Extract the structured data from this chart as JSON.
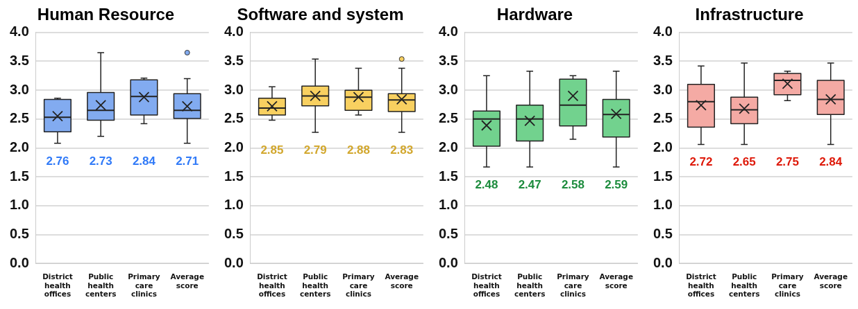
{
  "chart_data": [
    {
      "type": "box",
      "title": "Human Resource",
      "categories": [
        "District health offices",
        "Public health centers",
        "Primary care clinics",
        "Average score"
      ],
      "color": "#82abf0",
      "ylim": [
        0,
        4
      ],
      "yticks": [
        {
          "value": 0,
          "label": "0.0"
        },
        {
          "value": 0.5,
          "label": "0.5"
        },
        {
          "value": 1,
          "label": "1.0"
        },
        {
          "value": 1.5,
          "label": "1.5"
        },
        {
          "value": 2,
          "label": "2.0"
        },
        {
          "value": 2.5,
          "label": "2.5"
        },
        {
          "value": 3,
          "label": "3.0"
        },
        {
          "value": 3.5,
          "label": "3.5"
        },
        {
          "value": 4,
          "label": "4.0"
        }
      ],
      "grid": "y",
      "legend": false,
      "boxes": [
        {
          "low": 2.08,
          "q1": 2.28,
          "median": 2.53,
          "q3": 2.84,
          "high": 2.86,
          "mean": 2.55
        },
        {
          "low": 2.2,
          "q1": 2.48,
          "median": 2.65,
          "q3": 2.96,
          "high": 3.65,
          "mean": 2.74
        },
        {
          "low": 2.42,
          "q1": 2.57,
          "median": 2.89,
          "q3": 3.18,
          "high": 3.21,
          "mean": 2.88
        },
        {
          "low": 2.08,
          "q1": 2.51,
          "median": 2.65,
          "q3": 2.94,
          "high": 3.2,
          "mean": 2.72,
          "outliers": [
            3.65
          ]
        }
      ],
      "annotations": [
        "2.76",
        "2.73",
        "2.84",
        "2.71"
      ]
    },
    {
      "type": "box",
      "title": "Software and system",
      "categories": [
        "District health offices",
        "Public health centers",
        "Primary care clinics",
        "Average score"
      ],
      "color": "#f8d060",
      "ylim": [
        0,
        4
      ],
      "yticks": [
        {
          "value": 0,
          "label": "0.0"
        },
        {
          "value": 0.5,
          "label": "0.5"
        },
        {
          "value": 1,
          "label": "1.0"
        },
        {
          "value": 1.5,
          "label": "1.5"
        },
        {
          "value": 2,
          "label": "2.0"
        },
        {
          "value": 2.5,
          "label": "2.5"
        },
        {
          "value": 3,
          "label": "3.0"
        },
        {
          "value": 3.5,
          "label": "3.5"
        },
        {
          "value": 4,
          "label": "4.0"
        }
      ],
      "grid": "y",
      "legend": false,
      "boxes": [
        {
          "low": 2.48,
          "q1": 2.57,
          "median": 2.69,
          "q3": 2.86,
          "high": 3.06,
          "mean": 2.72
        },
        {
          "low": 2.27,
          "q1": 2.73,
          "median": 2.9,
          "q3": 3.07,
          "high": 3.54,
          "mean": 2.9
        },
        {
          "low": 2.57,
          "q1": 2.65,
          "median": 2.88,
          "q3": 3.0,
          "high": 3.38,
          "mean": 2.88
        },
        {
          "low": 2.27,
          "q1": 2.63,
          "median": 2.83,
          "q3": 2.94,
          "high": 3.38,
          "mean": 2.84,
          "outliers": [
            3.54
          ]
        }
      ],
      "annotations": [
        "2.85",
        "2.79",
        "2.88",
        "2.83"
      ]
    },
    {
      "type": "box",
      "title": "Hardware",
      "categories": [
        "District health offices",
        "Public health centers",
        "Primary care clinics",
        "Average score"
      ],
      "color": "#72d28e",
      "ylim": [
        0,
        4
      ],
      "yticks": [
        {
          "value": 0,
          "label": "0.0"
        },
        {
          "value": 0.5,
          "label": "0.5"
        },
        {
          "value": 1,
          "label": "1.0"
        },
        {
          "value": 1.5,
          "label": "1.5"
        },
        {
          "value": 2,
          "label": "2.0"
        },
        {
          "value": 2.5,
          "label": "2.5"
        },
        {
          "value": 3,
          "label": "3.0"
        },
        {
          "value": 3.5,
          "label": "3.5"
        },
        {
          "value": 4,
          "label": "4.0"
        }
      ],
      "grid": "y",
      "legend": false,
      "boxes": [
        {
          "low": 1.67,
          "q1": 2.03,
          "median": 2.5,
          "q3": 2.64,
          "high": 3.25,
          "mean": 2.39
        },
        {
          "low": 1.67,
          "q1": 2.12,
          "median": 2.5,
          "q3": 2.74,
          "high": 3.33,
          "mean": 2.47
        },
        {
          "low": 2.15,
          "q1": 2.38,
          "median": 2.74,
          "q3": 3.19,
          "high": 3.25,
          "mean": 2.9
        },
        {
          "low": 1.67,
          "q1": 2.19,
          "median": 2.58,
          "q3": 2.84,
          "high": 3.33,
          "mean": 2.59
        }
      ],
      "annotations": [
        "2.48",
        "2.47",
        "2.58",
        "2.59"
      ]
    },
    {
      "type": "box",
      "title": "Infrastructure",
      "categories": [
        "District health offices",
        "Public health centers",
        "Primary care clinics",
        "Average score"
      ],
      "color": "#f4aaa4",
      "ylim": [
        0,
        4
      ],
      "yticks": [
        {
          "value": 0,
          "label": "0.0"
        },
        {
          "value": 0.5,
          "label": "0.5"
        },
        {
          "value": 1,
          "label": "1.0"
        },
        {
          "value": 1.5,
          "label": "1.5"
        },
        {
          "value": 2,
          "label": "2.0"
        },
        {
          "value": 2.5,
          "label": "2.5"
        },
        {
          "value": 3,
          "label": "3.0"
        },
        {
          "value": 3.5,
          "label": "3.5"
        },
        {
          "value": 4,
          "label": "4.0"
        }
      ],
      "grid": "y",
      "legend": false,
      "boxes": [
        {
          "low": 2.06,
          "q1": 2.36,
          "median": 2.8,
          "q3": 3.1,
          "high": 3.42,
          "mean": 2.74
        },
        {
          "low": 2.06,
          "q1": 2.42,
          "median": 2.66,
          "q3": 2.88,
          "high": 3.47,
          "mean": 2.68
        },
        {
          "low": 2.82,
          "q1": 2.92,
          "median": 3.17,
          "q3": 3.29,
          "high": 3.33,
          "mean": 3.11
        },
        {
          "low": 2.06,
          "q1": 2.58,
          "median": 2.84,
          "q3": 3.17,
          "high": 3.47,
          "mean": 2.84
        }
      ],
      "annotations": [
        "2.72",
        "2.65",
        "2.75",
        "2.84"
      ]
    }
  ]
}
